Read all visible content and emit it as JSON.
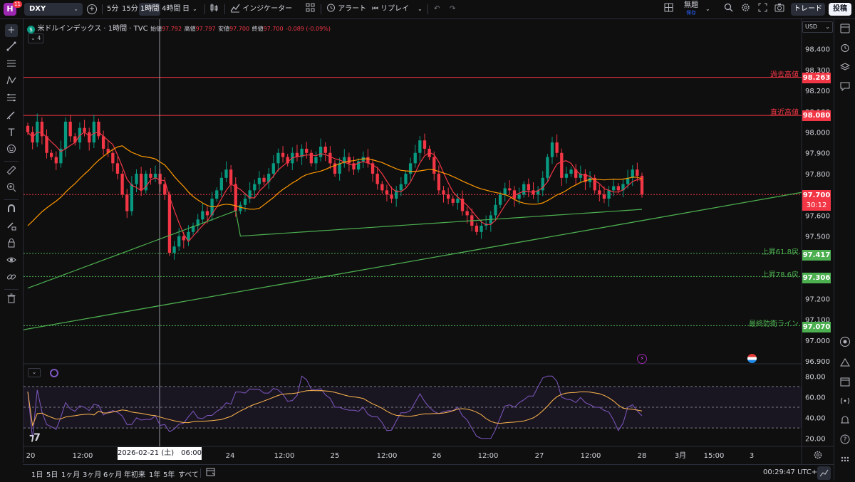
{
  "toolbar": {
    "avatar_letter": "H",
    "avatar_badge": "11",
    "symbol": "DXY",
    "intervals": [
      "5分",
      "15分",
      "1時間",
      "4時間",
      "日"
    ],
    "active_interval": "1時間",
    "indicators_label": "インジケーター",
    "alert_label": "アラート",
    "replay_label": "リプレイ",
    "layout_name": "無題",
    "layout_saved": "保存",
    "trade_label": "トレード",
    "publish_label": "投稿"
  },
  "legend": {
    "symbol_title": "米ドルインデックス · 1時間 · TVC",
    "open_label": "始値",
    "open": "97.792",
    "high_label": "高値",
    "high": "97.797",
    "low_label": "安値",
    "low": "97.700",
    "close_label": "終値",
    "close": "97.700",
    "change": "-0.089 (-0.09%)",
    "collapsed_count": "4"
  },
  "currency": "USD",
  "price_axis": {
    "ticks": [
      "98.400",
      "98.300",
      "98.200",
      "98.100",
      "98.000",
      "97.900",
      "97.800",
      "97.700",
      "97.600",
      "97.500",
      "97.400",
      "97.300",
      "97.200",
      "97.100",
      "97.000",
      "96.900"
    ]
  },
  "rsi_axis": {
    "ticks": [
      "80.00",
      "60.00",
      "40.00",
      "20.00"
    ]
  },
  "levels": [
    {
      "label": "過去高値",
      "price": "98.263",
      "color": "#f23645"
    },
    {
      "label": "直近高値",
      "price": "98.080",
      "color": "#f23645"
    },
    {
      "label": "上昇61.8戻",
      "price": "97.417",
      "color": "#4caf50"
    },
    {
      "label": "上昇78.6戻",
      "price": "97.306",
      "color": "#4caf50"
    },
    {
      "label": "最終防衛ライン",
      "price": "97.070",
      "color": "#4caf50"
    }
  ],
  "current_price": {
    "price": "97.700",
    "countdown": "30:12"
  },
  "time_axis": {
    "labels": [
      "20",
      "12:00",
      "24",
      "12:00",
      "25",
      "12:00",
      "26",
      "12:00",
      "27",
      "12:00",
      "28",
      "3月",
      "15:00",
      "3"
    ],
    "crosshair_label": "2026-02-21 (土)　06:00"
  },
  "bottom": {
    "ranges": [
      "1日",
      "5日",
      "1ヶ月",
      "3ヶ月",
      "6ヶ月",
      "年初来",
      "1年",
      "5年",
      "すべて"
    ],
    "clock": "00:29:47 UTC+9"
  },
  "colors": {
    "up": "#089981",
    "down": "#f23645",
    "ma_fast": "#f23645",
    "ma_mid": "#ff9800",
    "ma_slow": "#4caf50",
    "trend": "#4caf50",
    "rsi": "#7e57c2",
    "rsi_ma": "#ffb74d"
  },
  "chart_data": {
    "type": "candlestick",
    "title": "米ドルインデックス · 1時間 · TVC",
    "ylim": [
      96.9,
      98.45
    ],
    "closes": [
      98.0,
      97.95,
      98.05,
      97.98,
      97.9,
      97.88,
      97.85,
      97.92,
      98.05,
      97.98,
      97.95,
      98.02,
      98.0,
      97.95,
      98.05,
      97.98,
      97.92,
      97.9,
      97.85,
      97.8,
      97.7,
      97.62,
      97.75,
      97.8,
      97.72,
      97.8,
      97.78,
      97.8,
      97.75,
      97.7,
      97.42,
      97.45,
      97.5,
      97.48,
      97.52,
      97.55,
      97.58,
      97.62,
      97.6,
      97.68,
      97.72,
      97.78,
      97.82,
      97.75,
      97.62,
      97.65,
      97.68,
      97.72,
      97.75,
      97.78,
      97.76,
      97.8,
      97.85,
      97.9,
      97.88,
      97.85,
      97.9,
      97.88,
      97.92,
      97.9,
      97.85,
      97.88,
      97.93,
      97.9,
      97.85,
      97.8,
      97.85,
      97.88,
      97.85,
      97.82,
      97.86,
      97.88,
      97.85,
      97.8,
      97.75,
      97.72,
      97.7,
      97.68,
      97.72,
      97.75,
      97.8,
      97.85,
      97.9,
      97.96,
      97.92,
      97.88,
      97.8,
      97.72,
      97.7,
      97.68,
      97.66,
      97.68,
      97.62,
      97.6,
      97.55,
      97.52,
      97.55,
      97.56,
      97.6,
      97.65,
      97.7,
      97.73,
      97.72,
      97.68,
      97.7,
      97.75,
      97.72,
      97.7,
      97.72,
      97.78,
      97.88,
      97.95,
      97.9,
      97.78,
      97.8,
      97.82,
      97.78,
      97.8,
      97.76,
      97.78,
      97.72,
      97.7,
      97.68,
      97.72,
      97.74,
      97.72,
      97.75,
      97.78,
      97.82,
      97.79,
      97.7
    ],
    "rsi_ylim": [
      15,
      85
    ]
  }
}
